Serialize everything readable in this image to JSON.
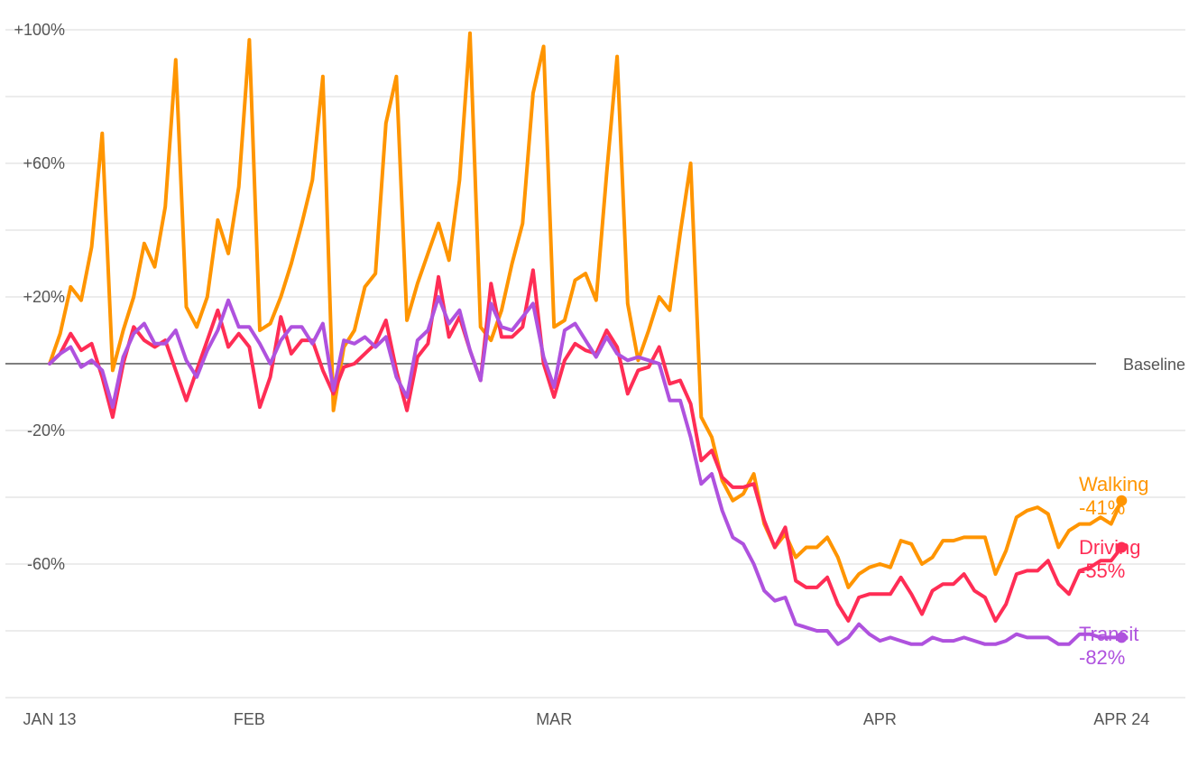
{
  "chart_data": {
    "type": "line",
    "title": "",
    "xlabel": "",
    "ylabel": "",
    "ylim": [
      -100,
      100
    ],
    "grid": true,
    "baseline_label": "Baseline",
    "x_ticks": [
      {
        "day": 0,
        "label": "JAN 13"
      },
      {
        "day": 19,
        "label": "FEB"
      },
      {
        "day": 48,
        "label": "MAR"
      },
      {
        "day": 79,
        "label": "APR"
      },
      {
        "day": 102,
        "label": "APR 24"
      }
    ],
    "y_ticks": [
      {
        "value": 100,
        "label": "+100%"
      },
      {
        "value": 60,
        "label": "+60%"
      },
      {
        "value": 20,
        "label": "+20%"
      },
      {
        "value": -20,
        "label": "-20%"
      },
      {
        "value": -60,
        "label": "-60%"
      }
    ],
    "x": [
      "JAN 13",
      "JAN 14",
      "JAN 15",
      "JAN 16",
      "JAN 17",
      "JAN 18",
      "JAN 19",
      "JAN 20",
      "JAN 21",
      "JAN 22",
      "JAN 23",
      "JAN 24",
      "JAN 25",
      "JAN 26",
      "JAN 27",
      "JAN 28",
      "JAN 29",
      "JAN 30",
      "JAN 31",
      "FEB 1",
      "FEB 2",
      "FEB 3",
      "FEB 4",
      "FEB 5",
      "FEB 6",
      "FEB 7",
      "FEB 8",
      "FEB 9",
      "FEB 10",
      "FEB 11",
      "FEB 12",
      "FEB 13",
      "FEB 14",
      "FEB 15",
      "FEB 16",
      "FEB 17",
      "FEB 18",
      "FEB 19",
      "FEB 20",
      "FEB 21",
      "FEB 22",
      "FEB 23",
      "FEB 24",
      "FEB 25",
      "FEB 26",
      "FEB 27",
      "FEB 28",
      "FEB 29",
      "MAR 1",
      "MAR 2",
      "MAR 3",
      "MAR 4",
      "MAR 5",
      "MAR 6",
      "MAR 7",
      "MAR 8",
      "MAR 9",
      "MAR 10",
      "MAR 11",
      "MAR 12",
      "MAR 13",
      "MAR 14",
      "MAR 15",
      "MAR 16",
      "MAR 17",
      "MAR 18",
      "MAR 19",
      "MAR 20",
      "MAR 21",
      "MAR 22",
      "MAR 23",
      "MAR 24",
      "MAR 25",
      "MAR 26",
      "MAR 27",
      "MAR 28",
      "MAR 29",
      "MAR 30",
      "MAR 31",
      "APR 1",
      "APR 2",
      "APR 3",
      "APR 4",
      "APR 5",
      "APR 6",
      "APR 7",
      "APR 8",
      "APR 9",
      "APR 10",
      "APR 11",
      "APR 12",
      "APR 13",
      "APR 14",
      "APR 15",
      "APR 16",
      "APR 17",
      "APR 18",
      "APR 19",
      "APR 20",
      "APR 21",
      "APR 22",
      "APR 23",
      "APR 24"
    ],
    "series": [
      {
        "name": "Walking",
        "end_value": "-41%",
        "color": "#FF9500",
        "values": [
          0,
          9,
          23,
          19,
          35,
          69,
          -2,
          10,
          20,
          36,
          29,
          47,
          91,
          17,
          11,
          20,
          43,
          33,
          53,
          97,
          10,
          12,
          20,
          30,
          42,
          55,
          86,
          -14,
          5,
          10,
          23,
          27,
          72,
          86,
          13,
          24,
          33,
          42,
          31,
          55,
          99,
          11,
          7,
          16,
          30,
          42,
          81,
          95,
          11,
          13,
          25,
          27,
          19,
          57,
          92,
          18,
          1,
          10,
          20,
          16,
          39,
          60,
          -16,
          -22,
          -35,
          -41,
          -39,
          -33,
          -48,
          -55,
          -51,
          -58,
          -55,
          -55,
          -52,
          -58,
          -67,
          -63,
          -61,
          -60,
          -61,
          -53,
          -54,
          -60,
          -58,
          -53,
          -53,
          -52,
          -52,
          -52,
          -63,
          -56,
          -46,
          -44,
          -43,
          -45,
          -55,
          -50,
          -48,
          -48,
          -46,
          -48,
          -41
        ]
      },
      {
        "name": "Driving",
        "end_value": "-55%",
        "color": "#FF2D55",
        "values": [
          0,
          3,
          9,
          4,
          6,
          -4,
          -16,
          0,
          11,
          7,
          5,
          7,
          -2,
          -11,
          -2,
          7,
          16,
          5,
          9,
          5,
          -13,
          -4,
          14,
          3,
          7,
          7,
          -2,
          -9,
          -1,
          0,
          3,
          6,
          13,
          -2,
          -14,
          2,
          6,
          26,
          8,
          14,
          4,
          -5,
          24,
          8,
          8,
          11,
          28,
          0,
          -10,
          1,
          6,
          4,
          3,
          10,
          5,
          -9,
          -2,
          -1,
          5,
          -6,
          -5,
          -12,
          -29,
          -26,
          -34,
          -37,
          -37,
          -36,
          -47,
          -55,
          -49,
          -65,
          -67,
          -67,
          -64,
          -72,
          -77,
          -70,
          -69,
          -69,
          -69,
          -64,
          -69,
          -75,
          -68,
          -66,
          -66,
          -63,
          -68,
          -70,
          -77,
          -72,
          -63,
          -62,
          -62,
          -59,
          -66,
          -69,
          -62,
          -61,
          -59,
          -59,
          -55
        ]
      },
      {
        "name": "Transit",
        "end_value": "-82%",
        "color": "#AF52DE",
        "values": [
          0,
          3,
          5,
          -1,
          1,
          -2,
          -13,
          2,
          9,
          12,
          6,
          6,
          10,
          1,
          -4,
          4,
          10,
          19,
          11,
          11,
          6,
          0,
          7,
          11,
          11,
          6,
          12,
          -8,
          7,
          6,
          8,
          5,
          8,
          -4,
          -10,
          7,
          10,
          20,
          12,
          16,
          4,
          -5,
          18,
          11,
          10,
          14,
          18,
          2,
          -7,
          10,
          12,
          7,
          2,
          8,
          3,
          1,
          2,
          1,
          0,
          -11,
          -11,
          -22,
          -36,
          -33,
          -44,
          -52,
          -54,
          -60,
          -68,
          -71,
          -70,
          -78,
          -79,
          -80,
          -80,
          -84,
          -82,
          -78,
          -81,
          -83,
          -82,
          -83,
          -84,
          -84,
          -82,
          -83,
          -83,
          -82,
          -83,
          -84,
          -84,
          -83,
          -81,
          -82,
          -82,
          -82,
          -84,
          -84,
          -81,
          -81,
          -82,
          -82,
          -82
        ]
      }
    ]
  }
}
